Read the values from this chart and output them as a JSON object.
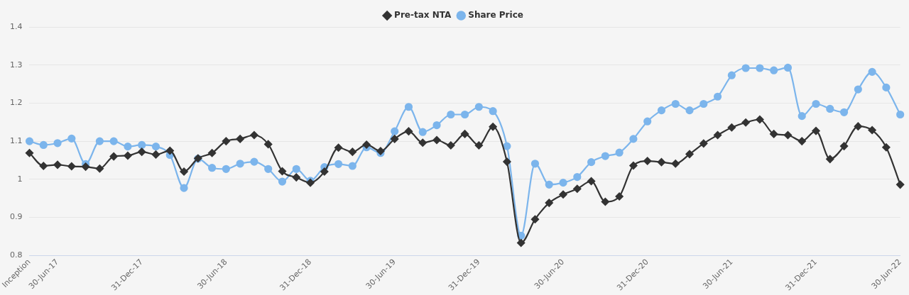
{
  "chart_data": {
    "type": "line",
    "categories": [
      "Inception",
      null,
      "30-Jun-17",
      null,
      null,
      null,
      null,
      null,
      "31-Dec-17",
      null,
      null,
      null,
      null,
      null,
      "30-Jun-18",
      null,
      null,
      null,
      null,
      null,
      "31-Dec-18",
      null,
      null,
      null,
      null,
      null,
      "30-Jun-19",
      null,
      null,
      null,
      null,
      null,
      "31-Dec-19",
      null,
      null,
      null,
      null,
      null,
      "30-Jun-20",
      null,
      null,
      null,
      null,
      null,
      "31-Dec-20",
      null,
      null,
      null,
      null,
      null,
      "30-Jun-21",
      null,
      null,
      null,
      null,
      null,
      "31-Dec-21",
      null,
      null,
      null,
      null,
      null,
      "30-Jun-22"
    ],
    "series": [
      {
        "name": "Share Price",
        "color": "#7cb5ec",
        "marker": "circle",
        "values": [
          1.1,
          1.09,
          1.095,
          1.107,
          1.04,
          1.1,
          1.1,
          1.086,
          1.09,
          1.086,
          1.064,
          0.977,
          1.054,
          1.03,
          1.027,
          1.041,
          1.046,
          1.027,
          0.994,
          1.027,
          0.996,
          1.032,
          1.04,
          1.035,
          1.084,
          1.069,
          1.126,
          1.19,
          1.124,
          1.142,
          1.17,
          1.17,
          1.19,
          1.179,
          1.087,
          0.852,
          1.041,
          0.986,
          0.991,
          1.006,
          1.045,
          1.061,
          1.07,
          1.106,
          1.152,
          1.181,
          1.198,
          1.181,
          1.198,
          1.217,
          1.273,
          1.292,
          1.292,
          1.286,
          1.293,
          1.166,
          1.198,
          1.185,
          1.176,
          1.236,
          1.282,
          1.241,
          1.17
        ]
      },
      {
        "name": "Pre-tax NTA",
        "color": "#333333",
        "marker": "diamond",
        "values": [
          1.069,
          1.035,
          1.038,
          1.034,
          1.033,
          1.028,
          1.06,
          1.062,
          1.072,
          1.065,
          1.075,
          1.02,
          1.055,
          1.069,
          1.1,
          1.106,
          1.116,
          1.092,
          1.021,
          1.005,
          0.991,
          1.02,
          1.083,
          1.072,
          1.091,
          1.074,
          1.106,
          1.126,
          1.096,
          1.103,
          1.089,
          1.119,
          1.089,
          1.138,
          1.046,
          0.833,
          0.895,
          0.938,
          0.96,
          0.975,
          0.995,
          0.941,
          0.955,
          1.036,
          1.048,
          1.045,
          1.041,
          1.066,
          1.094,
          1.116,
          1.136,
          1.149,
          1.157,
          1.119,
          1.116,
          1.1,
          1.127,
          1.053,
          1.087,
          1.139,
          1.129,
          1.084,
          0.986
        ]
      }
    ],
    "ylim": [
      0.8,
      1.4
    ],
    "yticks": [
      0.8,
      0.9,
      1,
      1.1,
      1.2,
      1.3,
      1.4
    ],
    "grid": "y",
    "legend": "top"
  }
}
